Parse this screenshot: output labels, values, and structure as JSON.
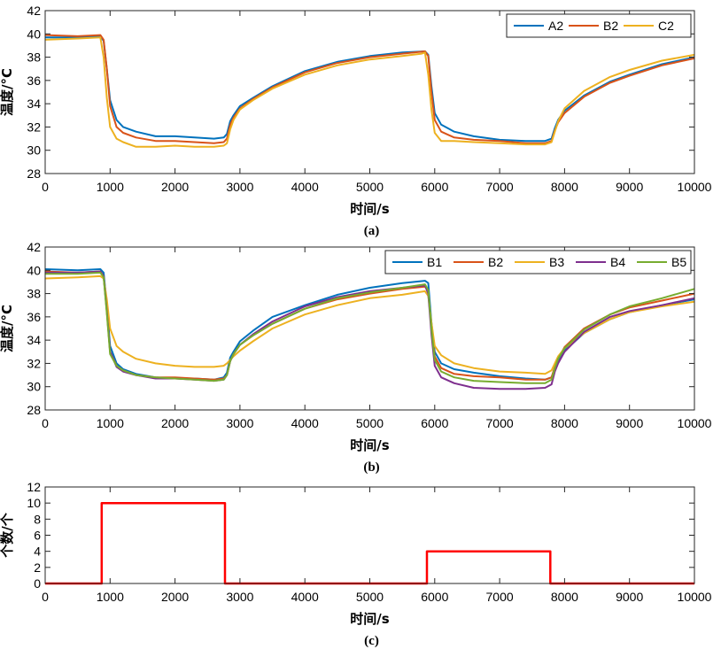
{
  "chart_data": [
    {
      "type": "line",
      "caption": "(a)",
      "xlabel": "时间/s",
      "ylabel": "温度/°C",
      "xlim": [
        0,
        10000
      ],
      "ylim": [
        28,
        42
      ],
      "xticks": [
        0,
        1000,
        2000,
        3000,
        4000,
        5000,
        6000,
        7000,
        8000,
        9000,
        10000
      ],
      "yticks": [
        28,
        30,
        32,
        34,
        36,
        38,
        40,
        42
      ],
      "legend_position": "top-right",
      "series": [
        {
          "name": "A2",
          "color": "#0072BD",
          "x": [
            0,
            500,
            850,
            900,
            950,
            1000,
            1100,
            1200,
            1400,
            1700,
            2000,
            2300,
            2600,
            2750,
            2800,
            2850,
            2900,
            3000,
            3200,
            3500,
            4000,
            4500,
            5000,
            5500,
            5850,
            5900,
            5950,
            6000,
            6100,
            6300,
            6600,
            7000,
            7400,
            7700,
            7800,
            7850,
            7900,
            8000,
            8300,
            8700,
            9000,
            9500,
            10000
          ],
          "y": [
            39.7,
            39.7,
            39.8,
            39.4,
            37.0,
            34.3,
            32.6,
            32.0,
            31.6,
            31.2,
            31.2,
            31.1,
            31.0,
            31.1,
            31.4,
            32.5,
            33.0,
            33.8,
            34.5,
            35.5,
            36.8,
            37.6,
            38.1,
            38.4,
            38.5,
            38.2,
            35.5,
            33.2,
            32.2,
            31.6,
            31.2,
            30.9,
            30.8,
            30.8,
            31.0,
            31.9,
            32.6,
            33.4,
            34.7,
            35.9,
            36.5,
            37.4,
            38.0
          ]
        },
        {
          "name": "B2",
          "color": "#D95319",
          "x": [
            0,
            500,
            850,
            900,
            950,
            1000,
            1100,
            1200,
            1400,
            1700,
            2000,
            2300,
            2600,
            2750,
            2800,
            2850,
            2900,
            3000,
            3200,
            3500,
            4000,
            4500,
            5000,
            5500,
            5850,
            5900,
            5950,
            6000,
            6100,
            6300,
            6600,
            7000,
            7400,
            7700,
            7800,
            7850,
            7900,
            8000,
            8300,
            8700,
            9000,
            9500,
            10000
          ],
          "y": [
            39.9,
            39.8,
            39.9,
            39.5,
            37.0,
            33.8,
            32.0,
            31.5,
            31.1,
            30.8,
            30.8,
            30.7,
            30.6,
            30.7,
            31.0,
            32.2,
            32.8,
            33.6,
            34.4,
            35.4,
            36.7,
            37.5,
            38.0,
            38.3,
            38.5,
            38.1,
            35.0,
            32.6,
            31.6,
            31.1,
            30.9,
            30.8,
            30.6,
            30.6,
            30.8,
            31.7,
            32.4,
            33.2,
            34.6,
            35.8,
            36.4,
            37.3,
            37.9
          ]
        },
        {
          "name": "C2",
          "color": "#EDB120",
          "x": [
            0,
            500,
            850,
            900,
            950,
            1000,
            1100,
            1200,
            1400,
            1700,
            2000,
            2300,
            2600,
            2750,
            2800,
            2850,
            2900,
            3000,
            3200,
            3500,
            4000,
            4500,
            5000,
            5500,
            5800,
            5850,
            5900,
            5950,
            6000,
            6100,
            6300,
            6600,
            7000,
            7400,
            7700,
            7800,
            7850,
            7900,
            8000,
            8300,
            8700,
            9000,
            9500,
            10000
          ],
          "y": [
            39.5,
            39.6,
            39.7,
            38.0,
            34.5,
            32.0,
            31.0,
            30.7,
            30.3,
            30.3,
            30.4,
            30.3,
            30.3,
            30.4,
            30.6,
            31.8,
            32.6,
            33.5,
            34.3,
            35.3,
            36.5,
            37.3,
            37.8,
            38.1,
            38.3,
            38.4,
            36.5,
            33.5,
            31.5,
            30.8,
            30.8,
            30.7,
            30.6,
            30.5,
            30.5,
            30.7,
            31.6,
            32.5,
            33.6,
            35.1,
            36.3,
            36.9,
            37.7,
            38.2
          ]
        }
      ]
    },
    {
      "type": "line",
      "caption": "(b)",
      "xlabel": "时间/s",
      "ylabel": "温度/°C",
      "xlim": [
        0,
        10000
      ],
      "ylim": [
        28,
        42
      ],
      "xticks": [
        0,
        1000,
        2000,
        3000,
        4000,
        5000,
        6000,
        7000,
        8000,
        9000,
        10000
      ],
      "yticks": [
        28,
        30,
        32,
        34,
        36,
        38,
        40,
        42
      ],
      "legend_position": "top-right",
      "series": [
        {
          "name": "B1",
          "color": "#0072BD",
          "x": [
            0,
            500,
            850,
            900,
            950,
            1000,
            1100,
            1200,
            1400,
            1700,
            2000,
            2300,
            2600,
            2750,
            2800,
            2850,
            2900,
            3000,
            3200,
            3500,
            4000,
            4500,
            5000,
            5500,
            5850,
            5900,
            5950,
            6000,
            6100,
            6300,
            6600,
            7000,
            7400,
            7700,
            7800,
            7850,
            7900,
            8000,
            8300,
            8700,
            9000,
            9500,
            10000
          ],
          "y": [
            40.1,
            40.0,
            40.1,
            39.8,
            37.0,
            33.5,
            32.0,
            31.5,
            31.1,
            30.8,
            30.7,
            30.7,
            30.6,
            30.8,
            31.2,
            32.5,
            33.0,
            33.9,
            34.8,
            36.0,
            37.0,
            37.9,
            38.5,
            38.9,
            39.1,
            38.9,
            35.5,
            33.0,
            32.0,
            31.5,
            31.2,
            30.9,
            30.7,
            30.6,
            30.8,
            31.6,
            32.3,
            33.1,
            34.6,
            35.8,
            36.4,
            37.0,
            37.5
          ]
        },
        {
          "name": "B2",
          "color": "#D95319",
          "x": [
            0,
            500,
            850,
            900,
            950,
            1000,
            1100,
            1200,
            1400,
            1700,
            2000,
            2300,
            2600,
            2750,
            2800,
            2850,
            2900,
            3000,
            3200,
            3500,
            4000,
            4500,
            5000,
            5500,
            5850,
            5900,
            5950,
            6000,
            6100,
            6300,
            6600,
            7000,
            7400,
            7700,
            7800,
            7850,
            7900,
            8000,
            8300,
            8700,
            9000,
            9500,
            10000
          ],
          "y": [
            39.9,
            39.8,
            39.9,
            39.5,
            36.5,
            33.0,
            31.8,
            31.4,
            31.0,
            30.8,
            30.8,
            30.7,
            30.6,
            30.7,
            31.0,
            32.2,
            32.8,
            33.6,
            34.4,
            35.4,
            36.7,
            37.5,
            38.0,
            38.4,
            38.6,
            38.2,
            35.0,
            32.6,
            31.6,
            31.1,
            30.9,
            30.8,
            30.6,
            30.6,
            30.8,
            31.7,
            32.4,
            33.4,
            35.0,
            36.2,
            36.8,
            37.4,
            38.0
          ]
        },
        {
          "name": "B3",
          "color": "#EDB120",
          "x": [
            0,
            500,
            850,
            900,
            950,
            1000,
            1100,
            1200,
            1400,
            1700,
            2000,
            2300,
            2600,
            2750,
            2800,
            2850,
            2900,
            3000,
            3200,
            3500,
            4000,
            4500,
            5000,
            5500,
            5850,
            5900,
            5950,
            6000,
            6100,
            6300,
            6600,
            7000,
            7400,
            7700,
            7800,
            7850,
            7900,
            8000,
            8300,
            8700,
            9000,
            9500,
            10000
          ],
          "y": [
            39.3,
            39.4,
            39.5,
            39.3,
            37.5,
            35.0,
            33.5,
            33.0,
            32.4,
            32.0,
            31.8,
            31.7,
            31.7,
            31.8,
            32.0,
            32.3,
            32.6,
            33.1,
            33.9,
            35.0,
            36.2,
            37.0,
            37.6,
            37.9,
            38.2,
            37.8,
            35.5,
            33.5,
            32.7,
            32.0,
            31.6,
            31.3,
            31.2,
            31.1,
            31.4,
            32.0,
            32.6,
            33.3,
            34.6,
            35.8,
            36.4,
            36.9,
            37.3
          ]
        },
        {
          "name": "B4",
          "color": "#7E2F8E",
          "x": [
            0,
            500,
            850,
            900,
            950,
            1000,
            1100,
            1200,
            1400,
            1700,
            2000,
            2300,
            2600,
            2750,
            2800,
            2850,
            2900,
            3000,
            3200,
            3500,
            4000,
            4500,
            5000,
            5500,
            5850,
            5900,
            5950,
            6000,
            6100,
            6300,
            6600,
            7000,
            7400,
            7700,
            7800,
            7850,
            7900,
            8000,
            8300,
            8700,
            9000,
            9500,
            10000
          ],
          "y": [
            39.8,
            39.8,
            39.9,
            39.5,
            36.5,
            33.0,
            31.7,
            31.3,
            31.0,
            30.7,
            30.7,
            30.6,
            30.5,
            30.6,
            31.0,
            32.2,
            32.8,
            33.6,
            34.5,
            35.6,
            36.9,
            37.7,
            38.2,
            38.5,
            38.7,
            38.0,
            34.5,
            31.8,
            30.8,
            30.3,
            29.9,
            29.8,
            29.8,
            29.9,
            30.2,
            31.3,
            32.0,
            33.0,
            34.7,
            36.0,
            36.5,
            37.0,
            37.6
          ]
        },
        {
          "name": "B5",
          "color": "#77AC30",
          "x": [
            0,
            500,
            850,
            900,
            950,
            1000,
            1100,
            1200,
            1400,
            1700,
            2000,
            2300,
            2600,
            2750,
            2800,
            2850,
            2900,
            3000,
            3200,
            3500,
            4000,
            4500,
            5000,
            5500,
            5850,
            5900,
            5950,
            6000,
            6100,
            6300,
            6600,
            7000,
            7400,
            7700,
            7800,
            7850,
            7900,
            8000,
            8300,
            8700,
            9000,
            9500,
            10000
          ],
          "y": [
            39.7,
            39.7,
            39.8,
            39.4,
            36.3,
            32.8,
            31.8,
            31.4,
            31.0,
            30.8,
            30.7,
            30.6,
            30.5,
            30.6,
            31.0,
            32.2,
            32.8,
            33.6,
            34.4,
            35.4,
            36.7,
            37.6,
            38.1,
            38.5,
            38.8,
            38.3,
            35.0,
            32.3,
            31.3,
            30.8,
            30.5,
            30.4,
            30.3,
            30.3,
            30.6,
            31.6,
            32.4,
            33.3,
            34.9,
            36.2,
            36.9,
            37.6,
            38.4
          ]
        }
      ]
    },
    {
      "type": "line",
      "caption": "(c)",
      "xlabel": "时间/s",
      "ylabel": "个数/个",
      "xlim": [
        0,
        10000
      ],
      "ylim": [
        0,
        12
      ],
      "xticks": [
        0,
        1000,
        2000,
        3000,
        4000,
        5000,
        6000,
        7000,
        8000,
        9000,
        10000
      ],
      "yticks": [
        0,
        2,
        4,
        6,
        8,
        10,
        12
      ],
      "series": [
        {
          "color": "#FF0000",
          "x": [
            0,
            870,
            870,
            2770,
            2770,
            5880,
            5880,
            7780,
            7780,
            10000
          ],
          "y": [
            0,
            0,
            10,
            10,
            0,
            0,
            4,
            4,
            0,
            0
          ]
        }
      ]
    }
  ]
}
